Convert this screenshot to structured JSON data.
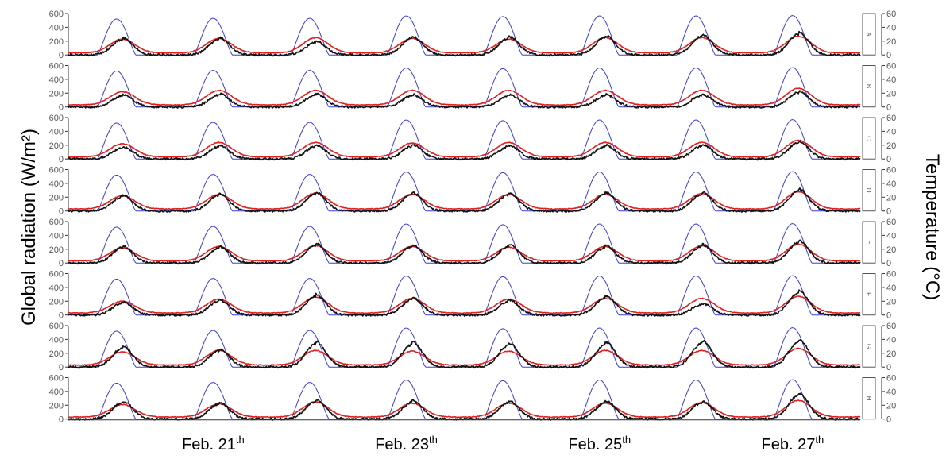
{
  "chart_data": {
    "type": "line",
    "ylabel_left": "Global radiation (W/m²)",
    "ylabel_right": "Temperature (°C)",
    "y_left": {
      "range": [
        0,
        600
      ],
      "ticks": [
        "0",
        "200",
        "400",
        "600"
      ]
    },
    "y_right": {
      "range": [
        0,
        60
      ],
      "ticks": [
        "0",
        "20",
        "40",
        "60"
      ]
    },
    "x_range": [
      20.0,
      28.2
    ],
    "x_labels": [
      {
        "day": 21,
        "text": "Feb. 21",
        "sup": "th"
      },
      {
        "day": 23,
        "text": "Feb. 23",
        "sup": "th"
      },
      {
        "day": 25,
        "text": "Feb. 25",
        "sup": "th"
      },
      {
        "day": 27,
        "text": "Feb. 27",
        "sup": "th"
      }
    ],
    "panels": [
      "A",
      "B",
      "C",
      "D",
      "E",
      "F",
      "G",
      "H"
    ],
    "series": [
      {
        "role": "global-radiation",
        "axis": "left",
        "color": "#3b3bdd",
        "daily_peak": [
          520,
          530,
          530,
          565,
          555,
          565,
          565,
          570
        ],
        "daily_peak_by_panel": {
          "A": [
            520,
            530,
            530,
            565,
            555,
            565,
            565,
            570
          ],
          "B": [
            520,
            530,
            530,
            565,
            555,
            565,
            565,
            570
          ],
          "C": [
            520,
            530,
            530,
            565,
            555,
            565,
            565,
            570
          ],
          "D": [
            520,
            530,
            530,
            565,
            555,
            565,
            565,
            570
          ],
          "E": [
            520,
            530,
            530,
            565,
            555,
            565,
            565,
            570
          ],
          "F": [
            520,
            530,
            530,
            565,
            555,
            565,
            565,
            570
          ],
          "G": [
            520,
            530,
            530,
            565,
            555,
            565,
            565,
            570
          ],
          "H": [
            520,
            530,
            530,
            565,
            555,
            565,
            565,
            570
          ]
        }
      },
      {
        "role": "air-temperature",
        "axis": "right",
        "color": "#e02020",
        "baseline": 3,
        "daily_peak_by_panel": {
          "A": [
            23,
            24,
            25,
            24,
            23,
            25,
            25,
            27
          ],
          "B": [
            22,
            24,
            24,
            24,
            24,
            24,
            24,
            27
          ],
          "C": [
            22,
            24,
            24,
            23,
            24,
            24,
            24,
            27
          ],
          "D": [
            22,
            24,
            26,
            24,
            24,
            24,
            25,
            28
          ],
          "E": [
            22,
            24,
            25,
            24,
            23,
            24,
            25,
            27
          ],
          "F": [
            20,
            23,
            26,
            24,
            23,
            24,
            24,
            27
          ],
          "G": [
            22,
            24,
            24,
            23,
            23,
            24,
            24,
            27
          ],
          "H": [
            21,
            22,
            25,
            23,
            23,
            23,
            24,
            27
          ]
        }
      },
      {
        "role": "measured-temperature",
        "axis": "right",
        "color": "#111111",
        "baseline": 0,
        "daily_peak_by_panel": {
          "A": [
            25,
            25,
            20,
            27,
            27,
            28,
            30,
            33
          ],
          "B": [
            18,
            19,
            19,
            18,
            18,
            18,
            18,
            23
          ],
          "C": [
            18,
            20,
            20,
            20,
            20,
            20,
            21,
            26
          ],
          "D": [
            23,
            25,
            27,
            27,
            26,
            27,
            27,
            32
          ],
          "E": [
            25,
            24,
            28,
            26,
            27,
            25,
            27,
            33
          ],
          "F": [
            19,
            22,
            30,
            25,
            22,
            28,
            17,
            35
          ],
          "G": [
            30,
            26,
            37,
            36,
            35,
            36,
            38,
            40
          ],
          "H": [
            26,
            24,
            28,
            27,
            26,
            26,
            26,
            38
          ]
        }
      }
    ]
  }
}
